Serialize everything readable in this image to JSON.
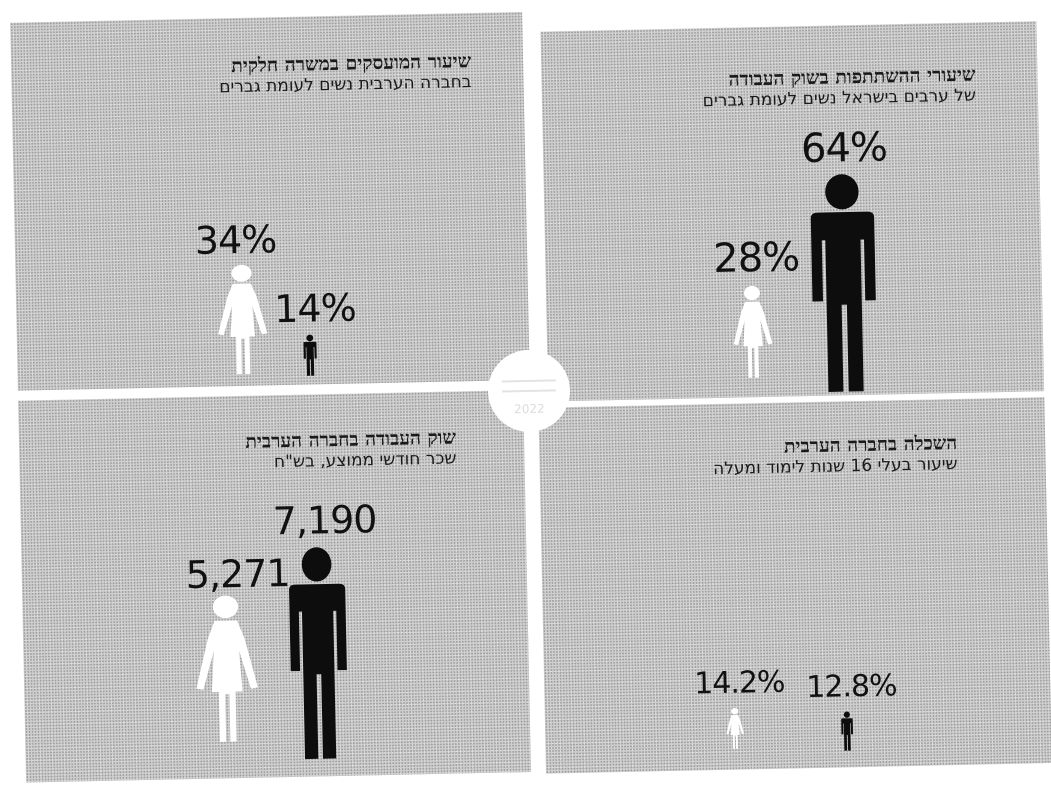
{
  "chart_data": [
    {
      "type": "pictogram",
      "title": "שיעור המועסקים במשרה חלקית",
      "subtitle": "בחברה הערבית נשים לעומת גברים",
      "series": [
        {
          "name": "נשים",
          "value": 34,
          "label": "34%"
        },
        {
          "name": "גברים",
          "value": 14,
          "label": "14%"
        }
      ]
    },
    {
      "type": "pictogram",
      "title": "שיעורי ההשתתפות בשוק העבודה",
      "subtitle": "של ערבים בישראל נשים לעומת גברים",
      "series": [
        {
          "name": "נשים",
          "value": 28,
          "label": "28%"
        },
        {
          "name": "גברים",
          "value": 64,
          "label": "64%"
        }
      ]
    },
    {
      "type": "pictogram",
      "title": "שוק העבודה בחברה הערבית",
      "subtitle": "שכר חודשי ממוצע, בש\"ח",
      "series": [
        {
          "name": "נשים",
          "value": 5271,
          "label": "5,271"
        },
        {
          "name": "גברים",
          "value": 7190,
          "label": "7,190"
        }
      ]
    },
    {
      "type": "pictogram",
      "title": "השכלה בחברה הערבית",
      "subtitle": "שיעור בעלי 16 שנות לימוד ומעלה",
      "series": [
        {
          "name": "נשים",
          "value": 14.2,
          "label": "14.2%"
        },
        {
          "name": "גברים",
          "value": 12.8,
          "label": "12.8%"
        }
      ]
    }
  ],
  "colors": {
    "panel": "#cfcfcf",
    "woman_figure": "#ffffff",
    "man_figure": "#0d0d0d",
    "text": "#111111"
  },
  "badge": {
    "text": "2022"
  }
}
